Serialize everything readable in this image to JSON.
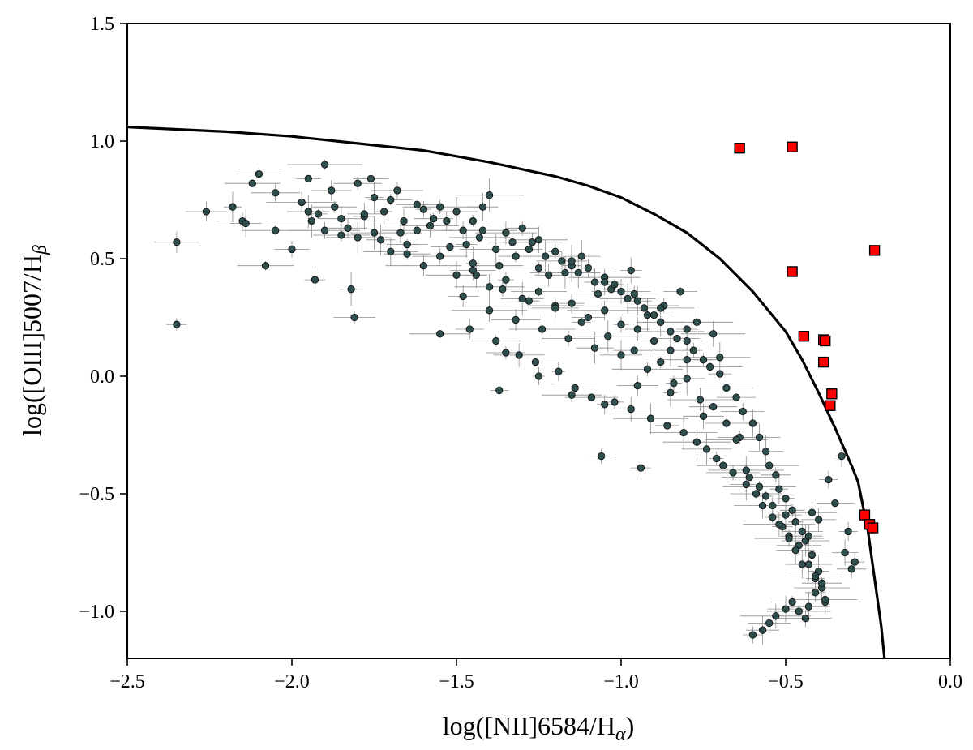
{
  "chart_data": {
    "type": "scatter",
    "title": "",
    "xlabel": {
      "pre": "log([NII]6584/H",
      "sub": "α",
      "post": ")"
    },
    "ylabel": {
      "pre": "log([OIII]5007/H",
      "sub": "β",
      "post": ""
    },
    "xlim": [
      -2.5,
      0.0
    ],
    "ylim": [
      -1.2,
      1.5
    ],
    "x_ticks": [
      -2.5,
      -2.0,
      -1.5,
      -1.0,
      -0.5,
      0.0
    ],
    "x_tick_labels": [
      "−2.5",
      "−2.0",
      "−1.5",
      "−1.0",
      "−0.5",
      "0.0"
    ],
    "y_ticks": [
      -1.0,
      -0.5,
      0.0,
      0.5,
      1.0,
      1.5
    ],
    "y_tick_labels": [
      "−1.0",
      "−0.5",
      "0.0",
      "0.5",
      "1.0",
      "1.5"
    ],
    "grid": false,
    "legend": "none",
    "colors": {
      "dots": "#2f4f4f",
      "squares": "#ff0000",
      "curve": "#000000",
      "errorbars": "#8c8c8c"
    },
    "curve": {
      "x": [
        -2.5,
        -2.2,
        -2.0,
        -1.8,
        -1.6,
        -1.4,
        -1.2,
        -1.1,
        -1.0,
        -0.9,
        -0.8,
        -0.7,
        -0.6,
        -0.5,
        -0.45,
        -0.4,
        -0.35,
        -0.3,
        -0.28,
        -0.25,
        -0.23,
        -0.21,
        -0.2
      ],
      "y": [
        1.06,
        1.04,
        1.02,
        0.99,
        0.96,
        0.91,
        0.85,
        0.81,
        0.76,
        0.69,
        0.61,
        0.5,
        0.36,
        0.19,
        0.07,
        -0.07,
        -0.22,
        -0.38,
        -0.45,
        -0.66,
        -0.86,
        -1.06,
        -1.2
      ]
    },
    "red_squares": {
      "x": [
        -0.64,
        -0.48,
        -0.48,
        -0.23,
        -0.445,
        -0.385,
        -0.38,
        -0.385,
        -0.36,
        -0.365,
        -0.26,
        -0.245,
        -0.235
      ],
      "y": [
        0.97,
        0.975,
        0.445,
        0.535,
        0.17,
        0.155,
        0.15,
        0.06,
        -0.075,
        -0.125,
        -0.59,
        -0.63,
        -0.645
      ]
    },
    "dots": {
      "x": [
        -2.35,
        -2.35,
        -2.26,
        -2.18,
        -2.15,
        -2.14,
        -2.12,
        -2.1,
        -2.08,
        -2.05,
        -1.95,
        -1.94,
        -1.93,
        -1.9,
        -1.88,
        -1.85,
        -1.82,
        -1.81,
        -1.8,
        -1.78,
        -1.76,
        -1.75,
        -1.73,
        -1.7,
        -1.68,
        -1.66,
        -1.65,
        -1.62,
        -1.6,
        -1.58,
        -1.55,
        -1.53,
        -1.5,
        -1.48,
        -1.45,
        -1.43,
        -1.42,
        -1.4,
        -1.38,
        -1.35,
        -1.33,
        -1.3,
        -1.28,
        -1.25,
        -1.23,
        -1.2,
        -1.18,
        -1.15,
        -1.13,
        -1.1,
        -1.08,
        -1.05,
        -1.03,
        -1.0,
        -0.98,
        -0.95,
        -0.93,
        -0.9,
        -0.88,
        -0.85,
        -0.83,
        -0.8,
        -0.78,
        -0.75,
        -0.73,
        -0.7,
        -0.68,
        -0.65,
        -0.63,
        -0.6,
        -0.58,
        -0.56,
        -0.55,
        -0.53,
        -0.52,
        -0.5,
        -0.48,
        -0.47,
        -0.45,
        -0.44,
        -0.42,
        -0.4,
        -0.39,
        -0.38,
        -1.95,
        -1.9,
        -1.85,
        -1.8,
        -1.75,
        -1.7,
        -1.65,
        -1.6,
        -1.55,
        -1.5,
        -1.45,
        -1.4,
        -1.35,
        -1.3,
        -1.25,
        -1.2,
        -1.15,
        -1.1,
        -1.05,
        -1.0,
        -0.95,
        -0.9,
        -0.85,
        -0.8,
        -2.05,
        -2.0,
        -1.97,
        -1.92,
        -1.87,
        -1.83,
        -1.78,
        -1.72,
        -1.67,
        -1.62,
        -1.57,
        -1.52,
        -1.47,
        -1.42,
        -1.37,
        -1.32,
        -1.27,
        -1.22,
        -1.17,
        -1.12,
        -1.07,
        -1.02,
        -0.97,
        -0.92,
        -0.87,
        -0.82,
        -0.77,
        -0.72,
        -1.48,
        -1.44,
        -1.4,
        -1.36,
        -1.32,
        -1.28,
        -1.24,
        -1.2,
        -1.16,
        -1.12,
        -1.08,
        -1.04,
        -1.0,
        -0.96,
        -0.92,
        -0.88,
        -0.84,
        -0.8,
        -0.76,
        -0.72,
        -0.68,
        -0.64,
        -1.46,
        -1.38,
        -1.31,
        -1.26,
        -1.19,
        -1.14,
        -1.09,
        -1.02,
        -0.97,
        -0.91,
        -0.86,
        -0.81,
        -0.77,
        -0.74,
        -0.71,
        -0.69,
        -0.66,
        -0.62,
        -0.59,
        -0.57,
        -0.54,
        -0.51,
        -0.49,
        -0.46,
        -0.43,
        -0.41,
        -1.37,
        -1.06,
        -0.94,
        -0.6,
        -0.57,
        -0.55,
        -0.53,
        -0.5,
        -0.48,
        -0.46,
        -0.44,
        -0.43,
        -0.41,
        -0.39,
        -0.38,
        -0.32,
        -0.29,
        -1.55,
        -1.35,
        -1.25,
        -1.15,
        -1.05,
        -0.95,
        -0.85,
        -0.75,
        -0.65,
        -0.62,
        -0.58,
        -0.54,
        -0.52,
        -0.49,
        -0.47,
        -0.45,
        -0.42,
        -0.4,
        -0.37,
        -0.35,
        -1.65,
        -1.45,
        -1.25,
        -1.15,
        -1.05,
        -0.96,
        -0.88,
        -0.8,
        -0.7,
        -0.61,
        -0.56,
        -0.5,
        -0.47,
        -0.43,
        -0.41,
        -0.3,
        -0.31,
        -0.33
      ],
      "y": [
        0.57,
        0.22,
        0.7,
        0.72,
        0.66,
        0.65,
        0.82,
        0.86,
        0.47,
        0.78,
        0.84,
        0.66,
        0.41,
        0.9,
        0.79,
        0.6,
        0.37,
        0.25,
        0.82,
        0.68,
        0.84,
        0.76,
        0.58,
        0.75,
        0.79,
        0.66,
        0.56,
        0.73,
        0.71,
        0.64,
        0.72,
        0.66,
        0.7,
        0.62,
        0.66,
        0.59,
        0.72,
        0.77,
        0.54,
        0.61,
        0.57,
        0.63,
        0.54,
        0.58,
        0.51,
        0.53,
        0.49,
        0.47,
        0.44,
        0.46,
        0.4,
        0.42,
        0.37,
        0.36,
        0.33,
        0.32,
        0.29,
        0.26,
        0.23,
        0.19,
        0.16,
        0.15,
        0.11,
        0.07,
        0.04,
        0.01,
        -0.05,
        -0.09,
        -0.15,
        -0.2,
        -0.26,
        -0.32,
        -0.38,
        -0.42,
        -0.48,
        -0.52,
        -0.57,
        -0.62,
        -0.66,
        -0.7,
        -0.76,
        -0.83,
        -0.9,
        -0.96,
        0.7,
        0.62,
        0.67,
        0.59,
        0.61,
        0.53,
        0.56,
        0.47,
        0.51,
        0.43,
        0.45,
        0.38,
        0.41,
        0.33,
        0.36,
        0.3,
        0.31,
        0.25,
        0.28,
        0.22,
        0.2,
        0.15,
        0.11,
        0.07,
        0.62,
        0.54,
        0.74,
        0.69,
        0.72,
        0.63,
        0.69,
        0.7,
        0.61,
        0.62,
        0.67,
        0.55,
        0.56,
        0.62,
        0.47,
        0.51,
        0.57,
        0.43,
        0.44,
        0.51,
        0.35,
        0.39,
        0.45,
        0.26,
        0.3,
        0.36,
        0.23,
        0.18,
        0.34,
        0.43,
        0.28,
        0.37,
        0.24,
        0.32,
        0.2,
        0.29,
        0.16,
        0.23,
        0.12,
        0.17,
        0.09,
        0.11,
        0.03,
        0.06,
        -0.03,
        -0.01,
        -0.1,
        -0.13,
        -0.2,
        -0.26,
        0.2,
        0.15,
        0.09,
        0.06,
        0.02,
        -0.05,
        -0.09,
        -0.11,
        -0.14,
        -0.18,
        -0.21,
        -0.24,
        -0.28,
        -0.31,
        -0.35,
        -0.38,
        -0.41,
        -0.46,
        -0.5,
        -0.55,
        -0.6,
        -0.64,
        -0.68,
        -0.72,
        -0.8,
        -0.86,
        -0.06,
        -0.34,
        -0.39,
        -1.1,
        -1.08,
        -1.05,
        -1.02,
        -0.99,
        -0.96,
        -1.0,
        -1.03,
        -0.98,
        -0.92,
        -0.88,
        -0.95,
        -0.75,
        -0.79,
        0.18,
        0.1,
        0.0,
        -0.08,
        -0.12,
        -0.04,
        -0.07,
        -0.17,
        -0.27,
        -0.4,
        -0.47,
        -0.55,
        -0.63,
        -0.69,
        -0.74,
        -0.8,
        -0.58,
        -0.61,
        -0.44,
        -0.54,
        0.52,
        0.48,
        0.46,
        0.49,
        0.4,
        0.35,
        0.29,
        0.2,
        0.08,
        -0.43,
        -0.51,
        -0.59,
        -0.62,
        -0.68,
        -0.85,
        -0.82,
        -0.66,
        -0.34
      ]
    }
  }
}
